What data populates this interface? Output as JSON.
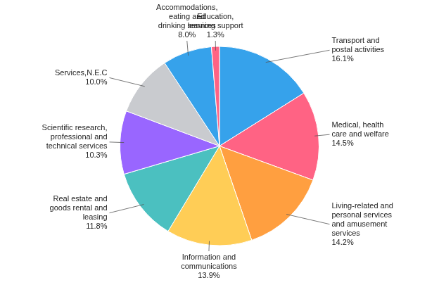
{
  "chart_data": {
    "type": "pie",
    "categories": [
      "Transport and\npostal activities",
      "Medical, health\ncare and welfare",
      "Living-related and\npersonal services\nand amusement\nservices",
      "Information and\ncommunications",
      "Real estate and\ngoods rental and\nleasing",
      "Scientific research,\nprofessional and\ntechnical services",
      "Services,N.E.C",
      "Accommodations,\neating and\ndrinking services",
      "Education,\nlearning support"
    ],
    "values": [
      16.1,
      14.5,
      14.2,
      13.9,
      11.8,
      10.3,
      10.0,
      8.0,
      1.3
    ],
    "value_labels": [
      "16.1%",
      "14.5%",
      "14.2%",
      "13.9%",
      "11.8%",
      "10.3%",
      "10.0%",
      "8.0%",
      "1.3%"
    ],
    "data_labels": true
  }
}
